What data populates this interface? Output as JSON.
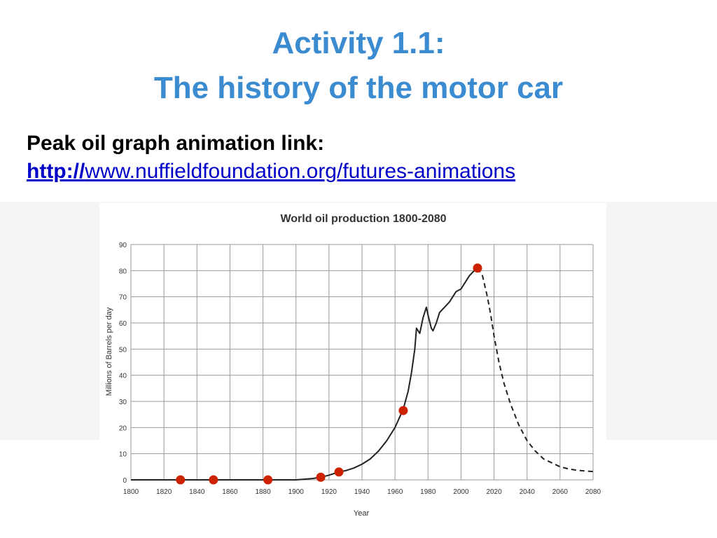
{
  "slide": {
    "title_line1": "Activity 1.1:",
    "title_line2": "The history of the motor car",
    "subtitle": "Peak oil graph animation link:",
    "link_protocol": "http://",
    "link_rest": "www.nuffieldfoundation.org/futures-animations"
  },
  "chart_data": {
    "type": "line",
    "title": "World oil production 1800-2080",
    "xlabel": "Year",
    "ylabel": "Millions of Barrels per day",
    "xlim": [
      1800,
      2080
    ],
    "ylim": [
      0,
      90
    ],
    "x_ticks": [
      1800,
      1820,
      1840,
      1860,
      1880,
      1900,
      1920,
      1940,
      1960,
      1980,
      2000,
      2020,
      2040,
      2060,
      2080
    ],
    "y_ticks": [
      0,
      10,
      20,
      30,
      40,
      50,
      60,
      70,
      80,
      90
    ],
    "grid": true,
    "colors": {
      "line": "#222222",
      "marker": "#cc2200",
      "grid": "#9a9a9a"
    },
    "series": [
      {
        "style": "solid",
        "x": [
          1800,
          1880,
          1900,
          1910,
          1915,
          1920,
          1925,
          1930,
          1935,
          1940,
          1945,
          1950,
          1955,
          1960,
          1965,
          1968,
          1970,
          1972,
          1973,
          1975,
          1977,
          1979,
          1980,
          1982,
          1983,
          1985,
          1987,
          1990,
          1993,
          1995,
          1997,
          2000,
          2003,
          2005,
          2008,
          2010
        ],
        "y": [
          0,
          0,
          0,
          0.5,
          1,
          1.8,
          2.8,
          3.5,
          4.5,
          6,
          8,
          11,
          15,
          20,
          27,
          34,
          41,
          50,
          58,
          56,
          62,
          66,
          63,
          58,
          57,
          60,
          64,
          66,
          68,
          70,
          72,
          73,
          76,
          78,
          80,
          81
        ]
      },
      {
        "style": "dashed",
        "x": [
          2010,
          2013,
          2016,
          2018,
          2020,
          2023,
          2026,
          2030,
          2035,
          2040,
          2045,
          2050,
          2055,
          2060,
          2065,
          2070,
          2075,
          2080
        ],
        "y": [
          81,
          78,
          70,
          63,
          55,
          45,
          37,
          29,
          21,
          15,
          11,
          8,
          6.5,
          5,
          4.2,
          3.7,
          3.4,
          3.2
        ]
      }
    ],
    "markers": {
      "x": [
        1830,
        1850,
        1883,
        1915,
        1926,
        1965,
        2010
      ],
      "y": [
        0,
        0,
        0,
        1,
        3,
        26.5,
        81
      ]
    }
  }
}
